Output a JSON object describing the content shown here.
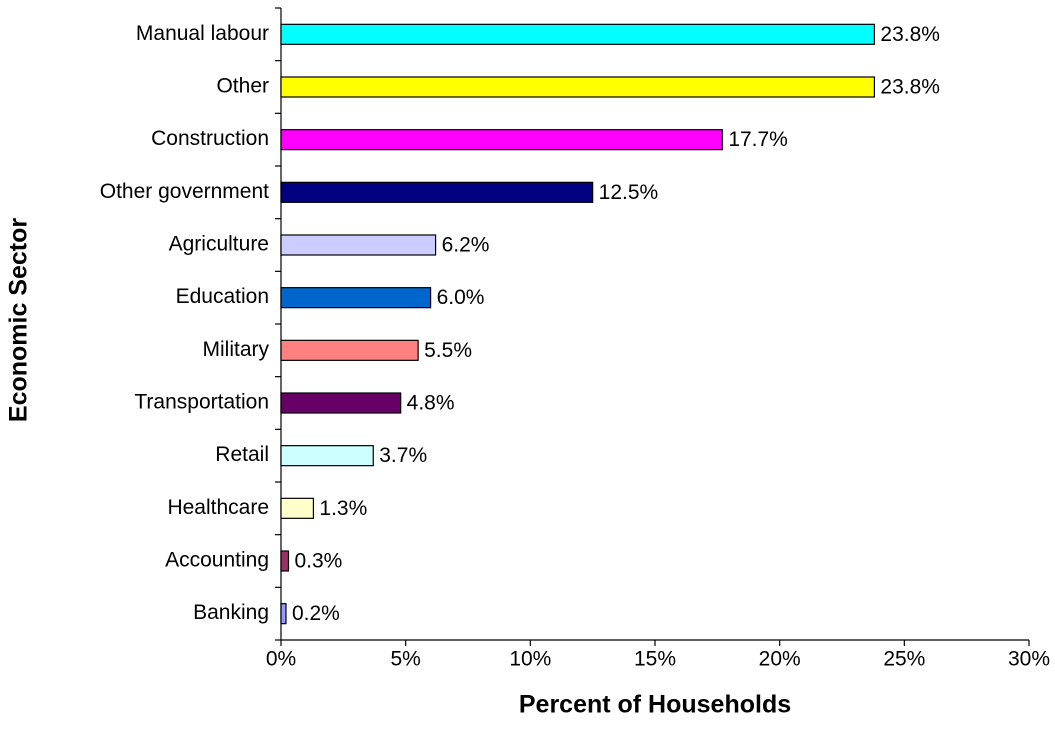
{
  "chart_data": {
    "type": "barh",
    "xlabel": "Percent of Households",
    "ylabel": "Economic Sector",
    "categories": [
      "Manual labour",
      "Other",
      "Construction",
      "Other government",
      "Agriculture",
      "Education",
      "Military",
      "Transportation",
      "Retail",
      "Healthcare",
      "Accounting",
      "Banking"
    ],
    "values": [
      23.8,
      23.8,
      17.7,
      12.5,
      6.2,
      6.0,
      5.5,
      4.8,
      3.7,
      1.3,
      0.3,
      0.2
    ],
    "value_labels": [
      "23.8%",
      "23.8%",
      "17.7%",
      "12.5%",
      "6.2%",
      "6.0%",
      "5.5%",
      "4.8%",
      "3.7%",
      "1.3%",
      "0.3%",
      "0.2%"
    ],
    "colors": [
      "#00ffff",
      "#ffff00",
      "#ff00ff",
      "#000080",
      "#ccccff",
      "#0066cc",
      "#ff8080",
      "#660066",
      "#ccffff",
      "#ffffcc",
      "#993366",
      "#9999ff"
    ],
    "xlim": [
      0,
      30
    ],
    "xticks": [
      {
        "value": 0,
        "label": "0%"
      },
      {
        "value": 5,
        "label": "5%"
      },
      {
        "value": 10,
        "label": "10%"
      },
      {
        "value": 15,
        "label": "15%"
      },
      {
        "value": 20,
        "label": "20%"
      },
      {
        "value": 25,
        "label": "25%"
      },
      {
        "value": 30,
        "label": "30%"
      }
    ],
    "grid": false
  }
}
